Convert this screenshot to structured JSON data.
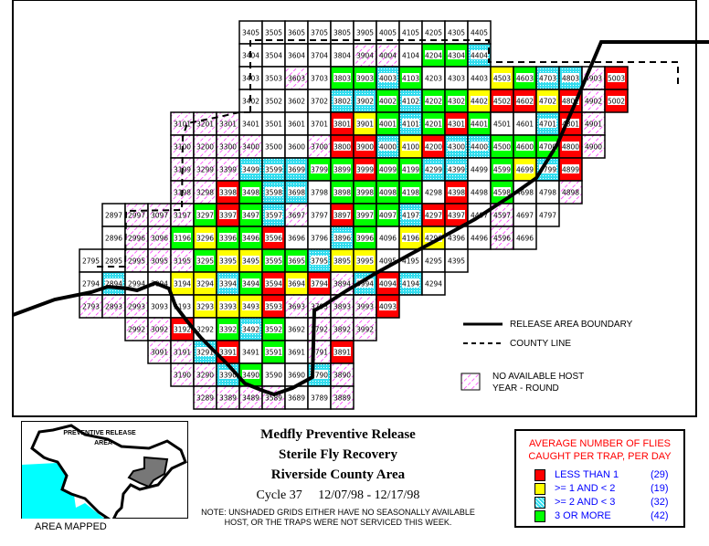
{
  "colors": {
    "R": "#ff0000",
    "Y": "#ffff00",
    "C": "#33ddee",
    "G": "#00ff00",
    "W": "#ffffff",
    "H": "#ffffff",
    "hatch": "#ff00ff",
    "sea": "#00ffff"
  },
  "grid_rows": [
    {
      "row": "05",
      "start": 34,
      "cells": "WWWWWWWWWWW"
    },
    {
      "row": "04",
      "start": 34,
      "cells": "WWWWWHHWGGC"
    },
    {
      "row": "03",
      "start": 34,
      "cells": "WWHWGGCGWWWYGCCHR"
    },
    {
      "row": "02",
      "start": 34,
      "cells": "WWWWCCGCGGYRRYRHR"
    },
    {
      "row": "01",
      "start": 31,
      "cells": "HHHWWWWRYGCGRGWWCRH"
    },
    {
      "row": "00",
      "start": 31,
      "cells": "HHHHWWHRRCYRCCGGGRH"
    },
    {
      "row": "99",
      "start": 31,
      "cells": "HHHCCCGGRGGCCWGYCR"
    },
    {
      "row": "98",
      "start": 31,
      "cells": "HHRGCCWGGGGWRWGWWH"
    },
    {
      "row": "97",
      "start": 28,
      "cells": "WHHHGRGCHWRGGCRRWHWW"
    },
    {
      "row": "96",
      "start": 28,
      "cells": "WHHGYGGRWWCGWYYWWHW"
    },
    {
      "row": "95",
      "start": 27,
      "cells": "WWHHHGYYGGCYYWWWW"
    },
    {
      "row": "94",
      "start": 27,
      "cells": "WCWWYYCGRYRHCRCW"
    },
    {
      "row": "93",
      "start": 27,
      "cells": "HHHWWYYYRHHHHR"
    },
    {
      "row": "92",
      "start": 29,
      "cells": "HHRWGCGWHHH"
    },
    {
      "row": "91",
      "start": 30,
      "cells": "HHCRWGWHR"
    },
    {
      "row": "90",
      "start": 31,
      "cells": "HHCGWWCH"
    },
    {
      "row": "89",
      "start": 32,
      "cells": "HHHHWWH"
    }
  ],
  "map_legend": {
    "release_boundary": "RELEASE AREA BOUNDARY",
    "county_line": "COUNTY LINE",
    "no_host_1": "NO AVAILABLE HOST",
    "no_host_2": "YEAR - ROUND"
  },
  "title": {
    "line1": "Medfly Preventive Release",
    "line2": "Sterile Fly Recovery",
    "line3": "Riverside County Area",
    "cycle": "Cycle 37     12/07/98 - 12/17/98"
  },
  "note": {
    "line1": "NOTE: UNSHADED GRIDS EITHER HAVE NO SEASONALLY AVAILABLE",
    "line2": "HOST, OR THE TRAPS WERE NOT SERVICED THIS WEEK."
  },
  "inset": {
    "label": "PREVENTIVE RELEASE",
    "label2": "AREA",
    "caption": "AREA MAPPED"
  },
  "legend": {
    "heading1": "AVERAGE NUMBER OF FLIES",
    "heading2": "CAUGHT PER TRAP, PER DAY",
    "items": [
      {
        "label": "LESS THAN 1",
        "count": "(29)",
        "code": "R"
      },
      {
        "label": ">= 1 AND < 2",
        "count": "(19)",
        "code": "Y"
      },
      {
        "label": ">= 2 AND < 3",
        "count": "(32)",
        "code": "C"
      },
      {
        "label": "3 OR MORE",
        "count": "(42)",
        "code": "G"
      }
    ]
  }
}
